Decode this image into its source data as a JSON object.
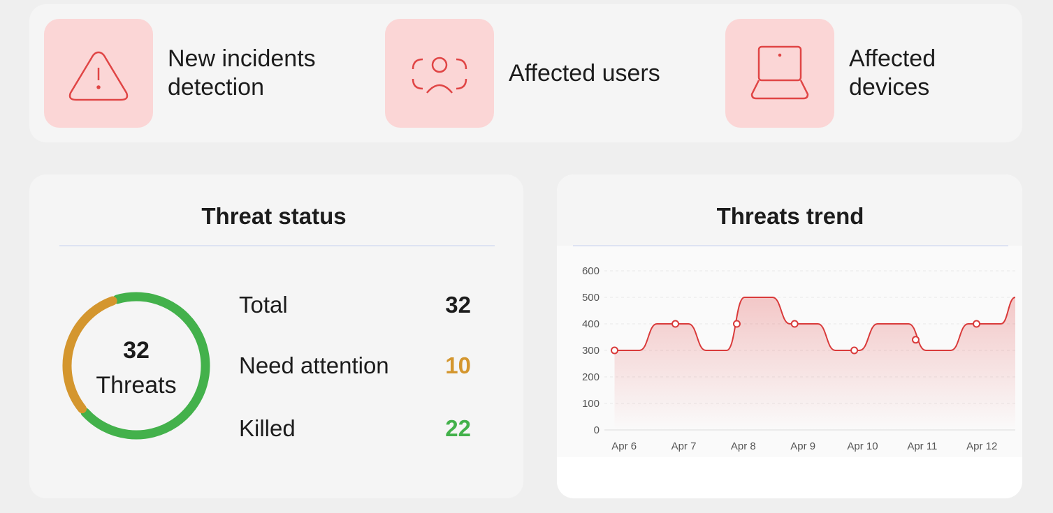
{
  "cards": [
    {
      "label": "New incidents detection"
    },
    {
      "label": "Affected users"
    },
    {
      "label": "Affected devices"
    }
  ],
  "threat_status": {
    "title": "Threat status",
    "center_value": 32,
    "center_label": "Threats",
    "rows": [
      {
        "label": "Total",
        "value": 32,
        "color": "#1c1c1c"
      },
      {
        "label": "Need attention",
        "value": 10,
        "color": "#d4962e"
      },
      {
        "label": "Killed",
        "value": 22,
        "color": "#43b14b"
      }
    ]
  },
  "chart_data": {
    "type": "line",
    "title": "Threats trend",
    "color": "#d93a3a",
    "x": [
      5.84,
      6.26,
      6.55,
      7.08,
      7.37,
      7.72,
      8.02,
      8.49,
      8.78,
      9.25,
      9.54,
      9.95,
      10.25,
      10.77,
      11.06,
      11.48,
      11.77,
      12.32,
      12.56
    ],
    "values": [
      300,
      300,
      400,
      400,
      300,
      300,
      500,
      500,
      400,
      400,
      300,
      300,
      400,
      400,
      300,
      300,
      400,
      400,
      500
    ],
    "markers": {
      "x": [
        5.84,
        6.86,
        7.89,
        8.86,
        9.86,
        10.89,
        11.91
      ],
      "values": [
        300,
        400,
        400,
        400,
        300,
        340,
        400
      ]
    },
    "xlim": [
      5.67,
      12.56
    ],
    "ylim": [
      0,
      600
    ],
    "xticks": [
      {
        "value": 6,
        "label": "Apr 6"
      },
      {
        "value": 7,
        "label": "Apr 7"
      },
      {
        "value": 8,
        "label": "Apr 8"
      },
      {
        "value": 9,
        "label": "Apr 9"
      },
      {
        "value": 10,
        "label": "Apr 10"
      },
      {
        "value": 11,
        "label": "Apr 11"
      },
      {
        "value": 12,
        "label": "Apr 12"
      }
    ],
    "yticks": [
      0,
      100,
      200,
      300,
      400,
      500,
      600
    ],
    "grid": true
  }
}
